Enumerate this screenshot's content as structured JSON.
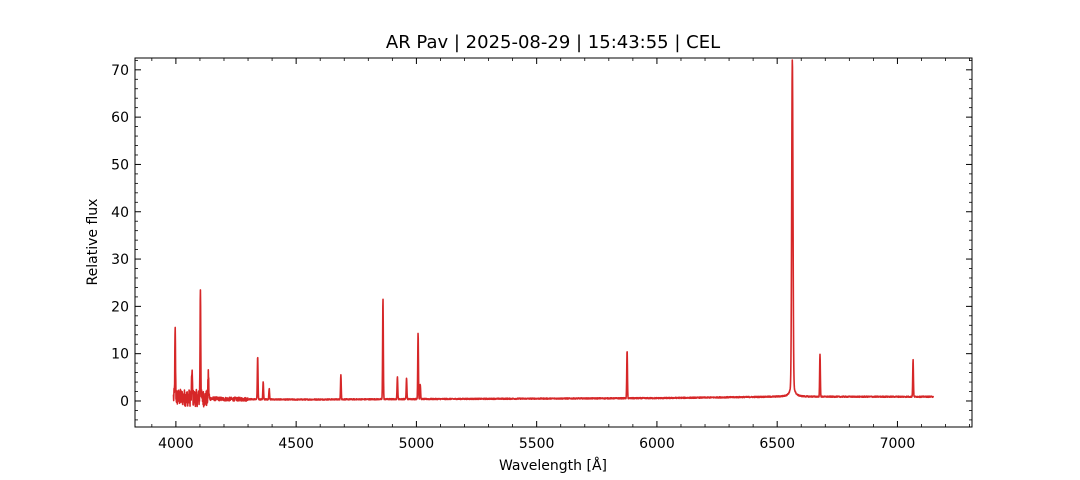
{
  "chart_data": {
    "type": "line",
    "title": "AR Pav | 2025-08-29 | 15:43:55 | CEL",
    "xlabel": "Wavelength [Å]",
    "ylabel": "Relative flux",
    "xlim": [
      3830,
      7310
    ],
    "ylim": [
      -5.5,
      72.5
    ],
    "x_ticks": [
      4000,
      4500,
      5000,
      5500,
      6000,
      6500,
      7000
    ],
    "y_ticks": [
      0,
      10,
      20,
      30,
      40,
      50,
      60,
      70
    ],
    "x_minor_step": 100,
    "y_minor_step": 2,
    "grid": false,
    "line_color": "#d62728",
    "series": [
      {
        "x_start": 3990,
        "x_end": 7150,
        "continuum": [
          [
            3990,
            0.8
          ],
          [
            4200,
            0.4
          ],
          [
            4500,
            0.3
          ],
          [
            5000,
            0.4
          ],
          [
            5500,
            0.5
          ],
          [
            6000,
            0.6
          ],
          [
            6500,
            0.9
          ],
          [
            7150,
            0.9
          ]
        ],
        "noisy_regions": [
          [
            3990,
            4140,
            1.8
          ],
          [
            4140,
            4300,
            0.4
          ]
        ],
        "peaks": [
          {
            "x": 3997,
            "y": 14.5
          },
          {
            "x": 4067,
            "y": 6.8
          },
          {
            "x": 4102,
            "y": 24.0
          },
          {
            "x": 4135,
            "y": 5.8
          },
          {
            "x": 4340,
            "y": 9.4
          },
          {
            "x": 4363,
            "y": 4.0
          },
          {
            "x": 4388,
            "y": 2.6
          },
          {
            "x": 4686,
            "y": 5.5
          },
          {
            "x": 4861,
            "y": 21.8
          },
          {
            "x": 4921,
            "y": 5.2
          },
          {
            "x": 4959,
            "y": 4.8
          },
          {
            "x": 5007,
            "y": 14.5
          },
          {
            "x": 5016,
            "y": 3.5
          },
          {
            "x": 5876,
            "y": 10.7
          },
          {
            "x": 6563,
            "y": 68.8
          },
          {
            "x": 6678,
            "y": 9.9
          },
          {
            "x": 7065,
            "y": 8.7
          }
        ]
      }
    ]
  }
}
